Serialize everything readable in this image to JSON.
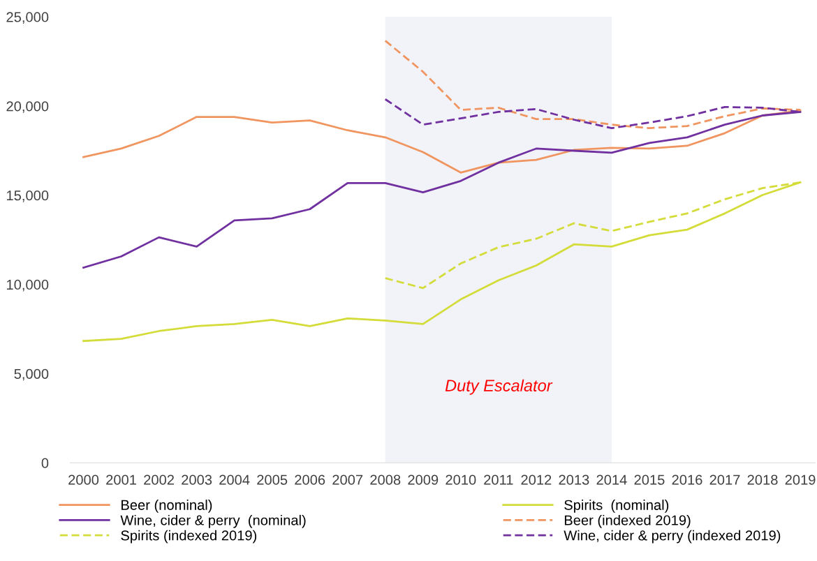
{
  "chart_data": {
    "type": "line",
    "categories": [
      "2000",
      "2001",
      "2002",
      "2003",
      "2004",
      "2005",
      "2006",
      "2007",
      "2008",
      "2009",
      "2010",
      "2011",
      "2012",
      "2013",
      "2014",
      "2015",
      "2016",
      "2017",
      "2018",
      "2019"
    ],
    "series": [
      {
        "name": "Beer (nominal)",
        "color": "#f0955f",
        "line_style": "solid",
        "values": [
          17140,
          17615,
          18325,
          19390,
          19390,
          19075,
          19195,
          18640,
          18245,
          17415,
          16270,
          16825,
          16980,
          17535,
          17655,
          17615,
          17770,
          18480,
          19470,
          19750
        ]
      },
      {
        "name": "Spirits  (nominal)",
        "color": "#d4dc3a",
        "line_style": "solid",
        "values": [
          6830,
          6950,
          7385,
          7660,
          7780,
          8015,
          7660,
          8095,
          7980,
          7780,
          9160,
          10230,
          11060,
          12245,
          12125,
          12755,
          13070,
          13980,
          15010,
          15720
        ]
      },
      {
        "name": "Wine, cider & perry  (nominal)",
        "color": "#7030a0",
        "line_style": "solid",
        "values": [
          10940,
          11570,
          12640,
          12125,
          13585,
          13705,
          14220,
          15680,
          15680,
          15165,
          15800,
          16825,
          17615,
          17495,
          17380,
          17930,
          18245,
          18955,
          19470,
          19670
        ]
      },
      {
        "name": "Beer (indexed 2019)",
        "color": "#f0955f",
        "line_style": "dashed",
        "values": [
          null,
          null,
          null,
          null,
          null,
          null,
          null,
          null,
          23660,
          21920,
          19785,
          19905,
          19270,
          19270,
          18955,
          18760,
          18880,
          19430,
          19865,
          19785
        ]
      },
      {
        "name": "Spirits (indexed 2019)",
        "color": "#d4dc3a",
        "line_style": "dashed",
        "values": [
          null,
          null,
          null,
          null,
          null,
          null,
          null,
          null,
          10350,
          9795,
          11175,
          12085,
          12560,
          13430,
          12995,
          13510,
          13980,
          14770,
          15400,
          15720
        ]
      },
      {
        "name": "Wine, cider & perry (indexed 2019)",
        "color": "#7030a0",
        "line_style": "dashed",
        "values": [
          null,
          null,
          null,
          null,
          null,
          null,
          null,
          null,
          20380,
          18955,
          19310,
          19670,
          19830,
          19235,
          18760,
          19075,
          19430,
          19945,
          19905,
          19670
        ]
      }
    ],
    "ylim": [
      0,
      25000
    ],
    "yticks": [
      {
        "value": 0,
        "label": "0"
      },
      {
        "value": 5000,
        "label": "5,000"
      },
      {
        "value": 10000,
        "label": "10,000"
      },
      {
        "value": 15000,
        "label": "15,000"
      },
      {
        "value": 20000,
        "label": "20,000"
      },
      {
        "value": 25000,
        "label": "25,000"
      }
    ],
    "bands": [
      {
        "axis": "x",
        "from": "2008",
        "to": "2014",
        "label": "Duty Escalator",
        "color": "#e6e8f3"
      }
    ],
    "grid": false,
    "legend": "bottom",
    "marker": "none"
  }
}
